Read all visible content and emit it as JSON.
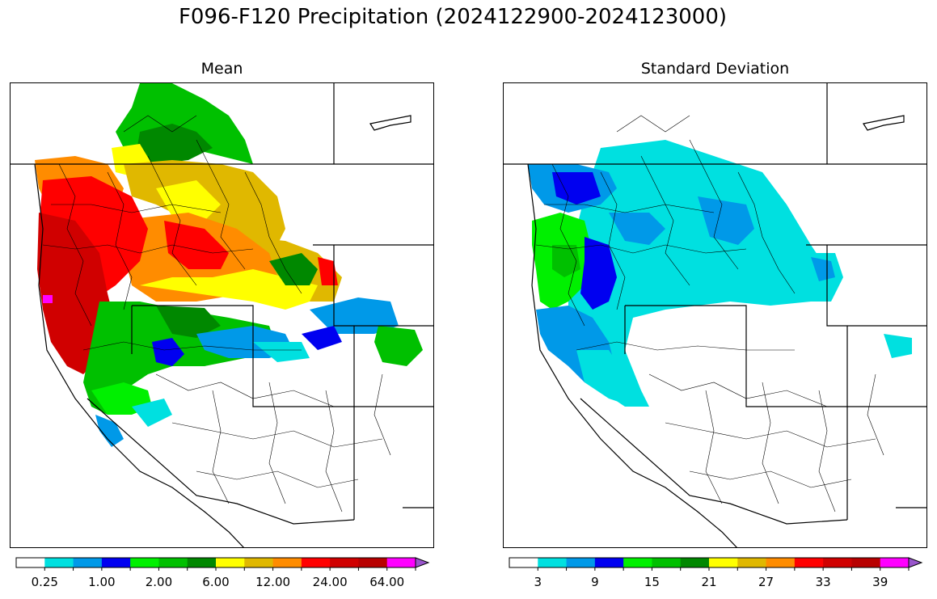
{
  "figure": {
    "title": "F096-F120 Precipitation (2024122900-2024123000)"
  },
  "colors": {
    "scale": [
      "#ffffff",
      "#00e0e0",
      "#0099e8",
      "#0000f0",
      "#00f000",
      "#00c000",
      "#008800",
      "#ffff00",
      "#e0b800",
      "#ff8c00",
      "#ff0000",
      "#d00000",
      "#b80000",
      "#ff00ff",
      "#9955cc"
    ],
    "boundary": "#000000"
  },
  "panels": [
    {
      "id": "mean",
      "title": "Mean",
      "colorbar": {
        "tick_labels": [
          "0.25",
          "1.00",
          "2.00",
          "6.00",
          "12.00",
          "24.00",
          "64.00"
        ],
        "extend": "max"
      }
    },
    {
      "id": "std",
      "title": "Standard Deviation",
      "colorbar": {
        "tick_labels": [
          "3",
          "9",
          "15",
          "21",
          "27",
          "33",
          "39"
        ],
        "extend": "max"
      }
    }
  ]
}
